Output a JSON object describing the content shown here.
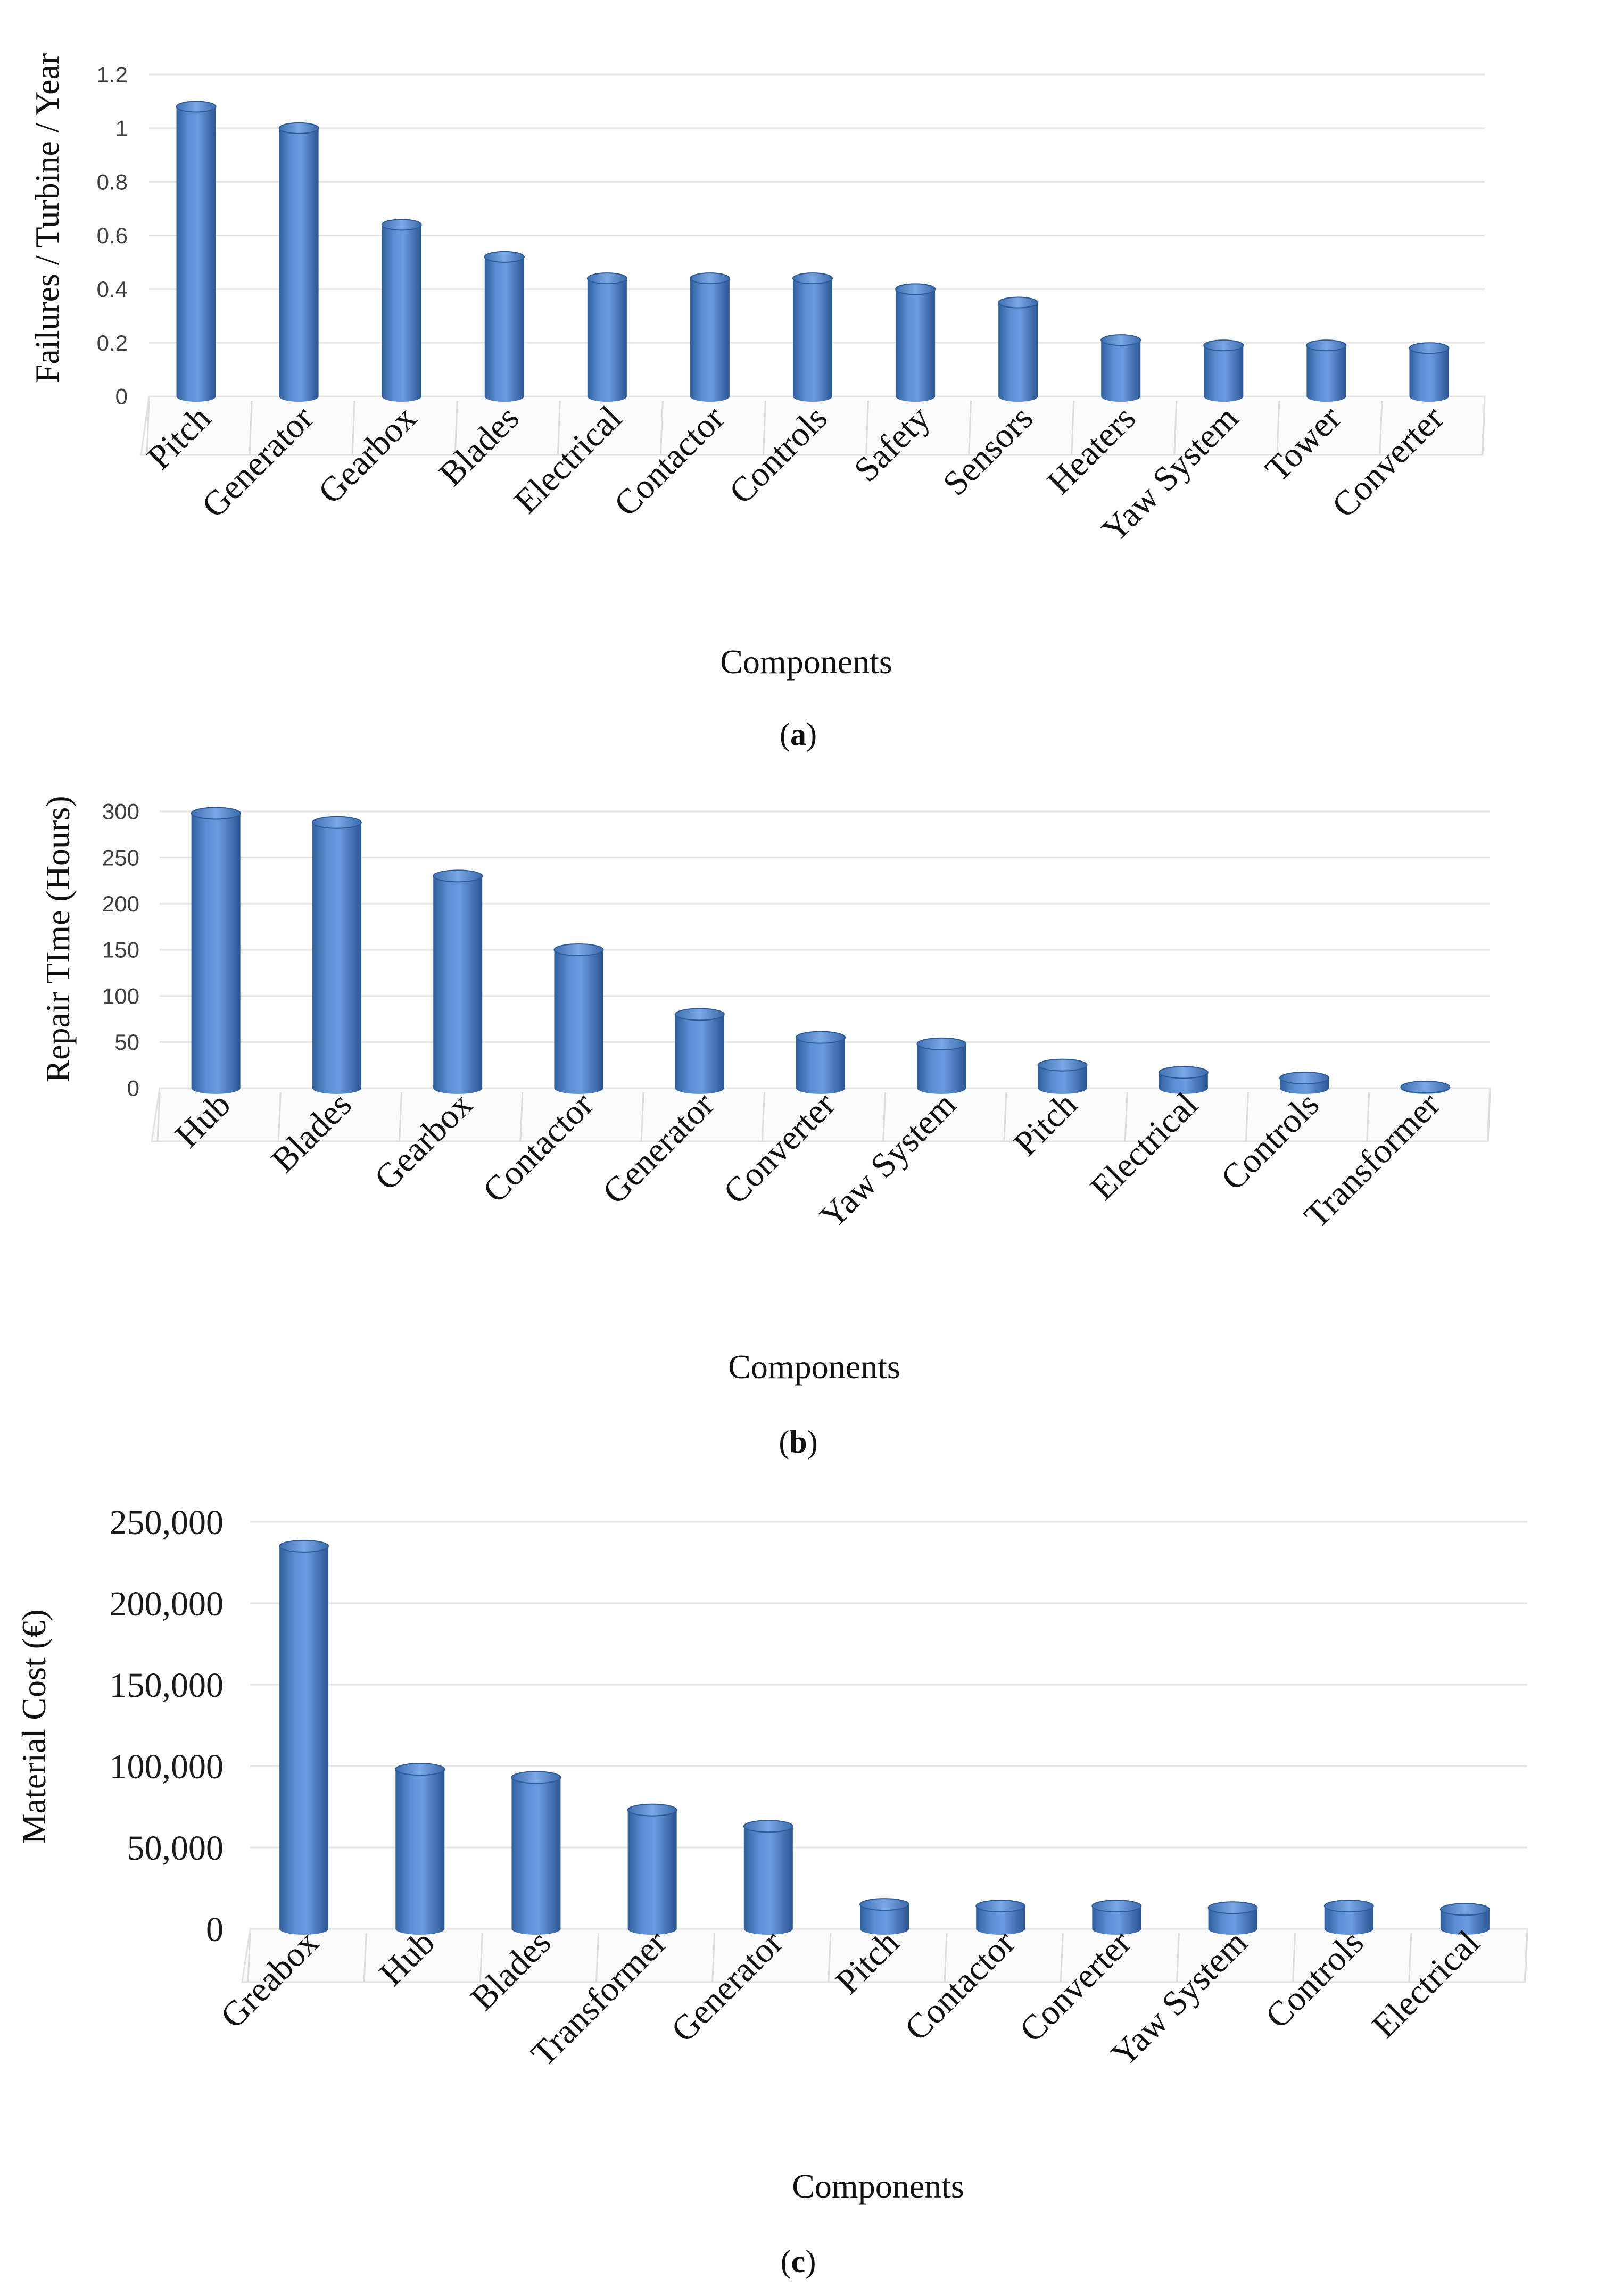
{
  "chart_data": [
    {
      "type": "bar",
      "panel_label": "a",
      "title": "",
      "xlabel": "Components",
      "ylabel": "Failures / Turbine / Year",
      "ylim": [
        0,
        1.2
      ],
      "yticks": [
        "0",
        "0.2",
        "0.4",
        "0.6",
        "0.8",
        "1",
        "1.2"
      ],
      "categories": [
        "Pitch",
        "Generator",
        "Gearbox",
        "Blades",
        "Electrical",
        "Contactor",
        "Controls",
        "Safety",
        "Sensors",
        "Heaters",
        "Yaw System",
        "Tower",
        "Converter"
      ],
      "values": [
        1.08,
        1.0,
        0.64,
        0.52,
        0.44,
        0.44,
        0.44,
        0.4,
        0.35,
        0.21,
        0.19,
        0.19,
        0.18
      ],
      "grid": true,
      "bar_color": "#4f81bd"
    },
    {
      "type": "bar",
      "panel_label": "b",
      "title": "",
      "xlabel": "Components",
      "ylabel": "Repair TIme (Hours)",
      "ylim": [
        0,
        300
      ],
      "yticks": [
        "0",
        "50",
        "100",
        "150",
        "200",
        "250",
        "300"
      ],
      "categories": [
        "Hub",
        "Blades",
        "Gearbox",
        "Contactor",
        "Generator",
        "Converter",
        "Yaw System",
        "Pitch",
        "Electrical",
        "Controls",
        "Transformer"
      ],
      "values": [
        298,
        288,
        230,
        150,
        80,
        55,
        48,
        25,
        17,
        11,
        1
      ],
      "grid": true,
      "bar_color": "#4f81bd"
    },
    {
      "type": "bar",
      "panel_label": "c",
      "title": "",
      "xlabel": "Components",
      "ylabel": "Material Cost (€)",
      "ylim": [
        0,
        250000
      ],
      "yticks": [
        "0",
        "50,000",
        "100,000",
        "150,000",
        "200,000",
        "250,000"
      ],
      "categories": [
        "Greabox",
        "Hub",
        "Blades",
        "Transformer",
        "Generator",
        "Pitch",
        "Contactor",
        "Converter",
        "Yaw System",
        "Controls",
        "Electrical"
      ],
      "values": [
        235000,
        98000,
        93000,
        73000,
        63000,
        15000,
        14000,
        14000,
        13000,
        14000,
        12000
      ],
      "grid": true,
      "bar_color": "#4f81bd"
    }
  ]
}
